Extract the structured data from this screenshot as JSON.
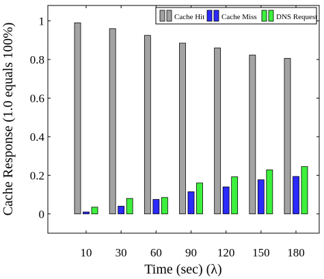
{
  "chart_data": {
    "type": "bar",
    "title": "",
    "xlabel": "Time (sec) (λ)",
    "ylabel": "Cache Response (1.0 equals 100%)",
    "categories": [
      "10",
      "30",
      "60",
      "90",
      "120",
      "150",
      "180"
    ],
    "series": [
      {
        "name": "Cache Hit",
        "values": [
          0.99,
          0.96,
          0.925,
          0.885,
          0.86,
          0.823,
          0.806
        ],
        "color": "#a3a3a3"
      },
      {
        "name": "Cache Miss",
        "values": [
          0.01,
          0.04,
          0.075,
          0.115,
          0.14,
          0.177,
          0.194
        ],
        "color": "#2b2bff"
      },
      {
        "name": "DNS Request",
        "values": [
          0.035,
          0.08,
          0.085,
          0.16,
          0.192,
          0.228,
          0.245
        ],
        "color": "#3df03d"
      }
    ],
    "yticks": [
      "0",
      "0.2",
      "0.4",
      "0.6",
      "0.8",
      "1"
    ],
    "ylim": [
      -0.1,
      1.08
    ],
    "grid": false,
    "legend_position": "top-right"
  }
}
